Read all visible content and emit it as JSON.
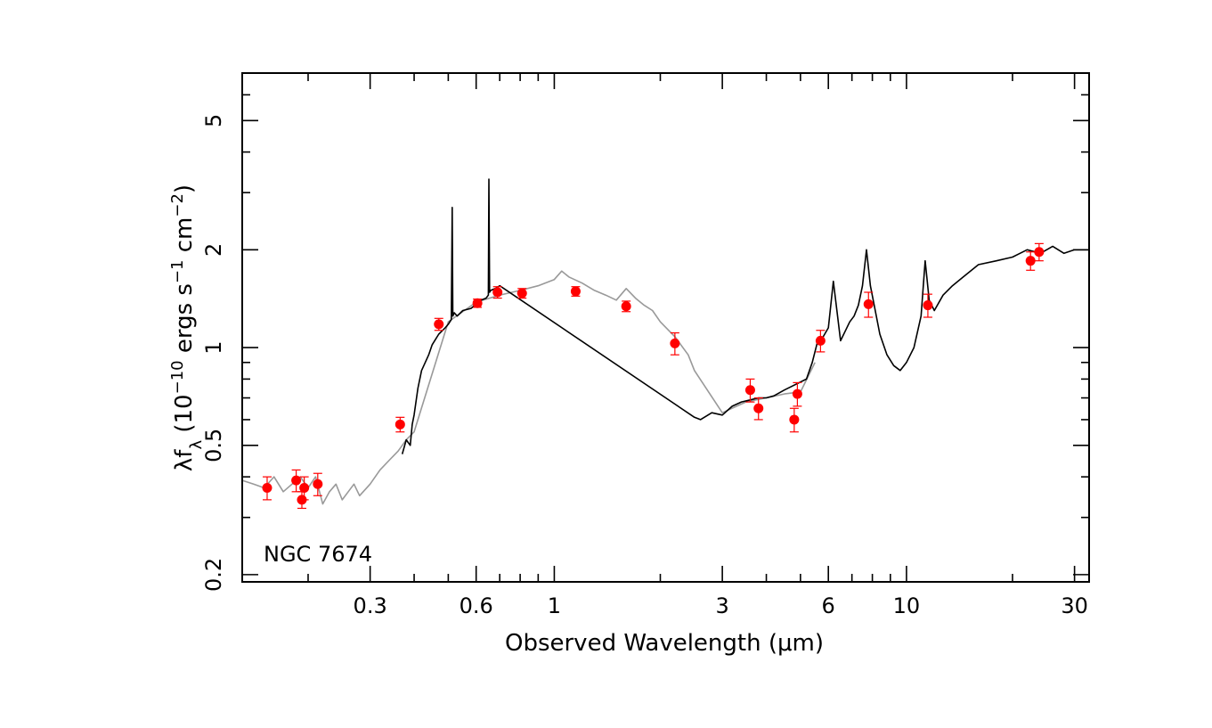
{
  "chart_data": {
    "type": "scatter",
    "title": "",
    "annotation": "NGC 7674",
    "xlabel": "Observed Wavelength (μm)",
    "ylabel": {
      "base": "λf",
      "sub": "λ",
      "open": " (10",
      "exp1": "−10",
      "mid1": " ergs s",
      "exp2": "−1",
      "mid2": " cm",
      "exp3": "−2",
      "close": ")"
    },
    "x_scale": "log",
    "y_scale": "log",
    "xlim": [
      0.13,
      33
    ],
    "ylim": [
      0.19,
      7.0
    ],
    "x_tick_labels": [
      {
        "v": 0.3,
        "label": "0.3"
      },
      {
        "v": 0.6,
        "label": "0.6"
      },
      {
        "v": 1,
        "label": "1"
      },
      {
        "v": 3,
        "label": "3"
      },
      {
        "v": 6,
        "label": "6"
      },
      {
        "v": 10,
        "label": "10"
      },
      {
        "v": 30,
        "label": "30"
      }
    ],
    "y_tick_labels": [
      {
        "v": 0.2,
        "label": "0.2"
      },
      {
        "v": 0.5,
        "label": "0.5"
      },
      {
        "v": 1,
        "label": "1"
      },
      {
        "v": 2,
        "label": "2"
      },
      {
        "v": 5,
        "label": "5"
      }
    ],
    "x_minor_ticks": [
      0.2,
      0.3,
      0.4,
      0.5,
      0.6,
      0.7,
      0.8,
      0.9,
      1,
      2,
      3,
      4,
      5,
      6,
      7,
      8,
      9,
      10,
      20,
      30
    ],
    "y_minor_ticks": [
      0.2,
      0.3,
      0.4,
      0.5,
      0.6,
      0.7,
      0.8,
      0.9,
      1,
      2,
      3,
      4,
      5,
      6
    ],
    "grid": false,
    "colors": {
      "points": "#ff0000",
      "observed_spectrum": "#000000",
      "template_spectrum": "#999999",
      "axes": "#000000"
    },
    "series": [
      {
        "kind": "template_spectrum",
        "x": [
          0.13,
          0.14,
          0.15,
          0.16,
          0.17,
          0.18,
          0.19,
          0.2,
          0.21,
          0.22,
          0.23,
          0.24,
          0.25,
          0.26,
          0.27,
          0.28,
          0.3,
          0.32,
          0.34,
          0.36,
          0.37,
          0.38,
          0.4,
          0.5,
          0.6,
          0.7,
          0.8,
          0.9,
          1.0,
          1.05,
          1.1,
          1.2,
          1.3,
          1.4,
          1.5,
          1.6,
          1.7,
          1.8,
          1.9,
          2.0,
          2.2,
          2.4,
          2.5,
          3.0,
          3.5,
          4.0,
          4.5,
          5.0,
          5.5
        ],
        "y": [
          0.39,
          0.38,
          0.37,
          0.4,
          0.36,
          0.38,
          0.4,
          0.37,
          0.4,
          0.33,
          0.36,
          0.38,
          0.34,
          0.36,
          0.38,
          0.35,
          0.38,
          0.42,
          0.45,
          0.48,
          0.5,
          0.52,
          0.55,
          1.2,
          1.38,
          1.45,
          1.5,
          1.55,
          1.62,
          1.72,
          1.65,
          1.58,
          1.5,
          1.45,
          1.4,
          1.52,
          1.42,
          1.35,
          1.3,
          1.2,
          1.08,
          0.95,
          0.85,
          0.63,
          0.68,
          0.7,
          0.72,
          0.73,
          0.9
        ]
      },
      {
        "kind": "observed_spectrum",
        "x": [
          0.37,
          0.38,
          0.39,
          0.395,
          0.4,
          0.41,
          0.42,
          0.43,
          0.44,
          0.45,
          0.47,
          0.49,
          0.5,
          0.51,
          0.513,
          0.515,
          0.52,
          0.53,
          0.55,
          0.58,
          0.6,
          0.62,
          0.64,
          0.65,
          0.652,
          0.655,
          0.66,
          0.68,
          0.7,
          2.5,
          2.6,
          2.8,
          3.0,
          3.2,
          3.4,
          3.6,
          3.8,
          4.0,
          4.2,
          4.5,
          5.2,
          5.4,
          5.6,
          5.8,
          6.0,
          6.2,
          6.5,
          6.9,
          7.1,
          7.3,
          7.5,
          7.7,
          7.9,
          8.1,
          8.4,
          8.8,
          9.2,
          9.6,
          10.0,
          10.5,
          11.0,
          11.3,
          11.6,
          12.0,
          12.7,
          13.5,
          14.5,
          16.0,
          18.0,
          20.0,
          22.0,
          24.0,
          26.0,
          28.0,
          30.0,
          33.0
        ],
        "y": [
          0.47,
          0.52,
          0.5,
          0.58,
          0.62,
          0.75,
          0.85,
          0.9,
          0.95,
          1.02,
          1.1,
          1.15,
          1.18,
          1.22,
          2.7,
          1.25,
          1.28,
          1.25,
          1.3,
          1.32,
          1.36,
          1.4,
          1.42,
          1.45,
          3.3,
          1.48,
          1.5,
          1.52,
          1.55,
          0.61,
          0.6,
          0.63,
          0.62,
          0.66,
          0.68,
          0.69,
          0.7,
          0.7,
          0.71,
          0.74,
          0.8,
          0.9,
          1.05,
          1.08,
          1.15,
          1.6,
          1.05,
          1.2,
          1.25,
          1.35,
          1.55,
          2.0,
          1.55,
          1.35,
          1.1,
          0.95,
          0.88,
          0.85,
          0.9,
          1.0,
          1.25,
          1.85,
          1.4,
          1.3,
          1.45,
          1.55,
          1.65,
          1.8,
          1.85,
          1.9,
          2.0,
          1.95,
          2.05,
          1.95,
          2.0,
          2.0
        ]
      },
      {
        "kind": "photometry",
        "x": [
          0.153,
          0.185,
          0.192,
          0.195,
          0.213,
          0.365,
          0.47,
          0.605,
          0.69,
          0.81,
          1.15,
          1.6,
          2.2,
          3.6,
          3.8,
          4.8,
          4.9,
          5.7,
          7.8,
          11.5,
          22.5,
          23.8
        ],
        "y": [
          0.37,
          0.39,
          0.34,
          0.37,
          0.38,
          0.58,
          1.18,
          1.37,
          1.48,
          1.47,
          1.49,
          1.34,
          1.03,
          0.74,
          0.65,
          0.6,
          0.72,
          1.05,
          1.36,
          1.35,
          1.85,
          1.97
        ],
        "err": [
          0.03,
          0.03,
          0.02,
          0.03,
          0.03,
          0.03,
          0.05,
          0.04,
          0.06,
          0.05,
          0.05,
          0.05,
          0.08,
          0.06,
          0.05,
          0.05,
          0.06,
          0.08,
          0.12,
          0.11,
          0.12,
          0.12
        ]
      }
    ]
  }
}
